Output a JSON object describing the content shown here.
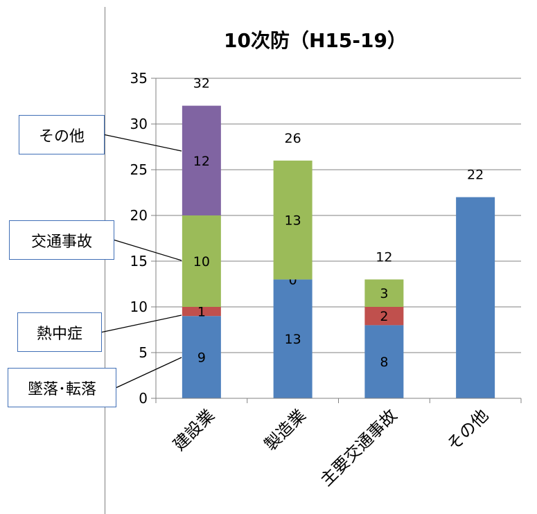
{
  "chart_data": {
    "type": "bar",
    "stacked": true,
    "title": "10次防（H15-19）",
    "categories": [
      "建設業",
      "製造業",
      "主要交通事故",
      "その他"
    ],
    "series": [
      {
        "name": "墜落･転落",
        "color": "#4f81bd",
        "values": [
          9,
          13,
          8,
          22
        ],
        "labels": [
          "9",
          "13",
          "8",
          ""
        ]
      },
      {
        "name": "熱中症",
        "color": "#c0504d",
        "values": [
          1,
          0,
          2,
          0
        ],
        "labels": [
          "1",
          "0",
          "2",
          ""
        ]
      },
      {
        "name": "交通事故",
        "color": "#9bbb59",
        "values": [
          10,
          13,
          3,
          0
        ],
        "labels": [
          "10",
          "13",
          "3",
          ""
        ]
      },
      {
        "name": "その他",
        "color": "#8064a2",
        "values": [
          12,
          0,
          0,
          0
        ],
        "labels": [
          "12",
          "",
          "",
          ""
        ]
      }
    ],
    "totals": [
      "32",
      "26",
      "12",
      "22"
    ],
    "ylim": [
      0,
      35
    ],
    "yticks": [
      0,
      5,
      10,
      15,
      20,
      25,
      30,
      35
    ],
    "gridlines": true,
    "legend": "callouts-left"
  }
}
